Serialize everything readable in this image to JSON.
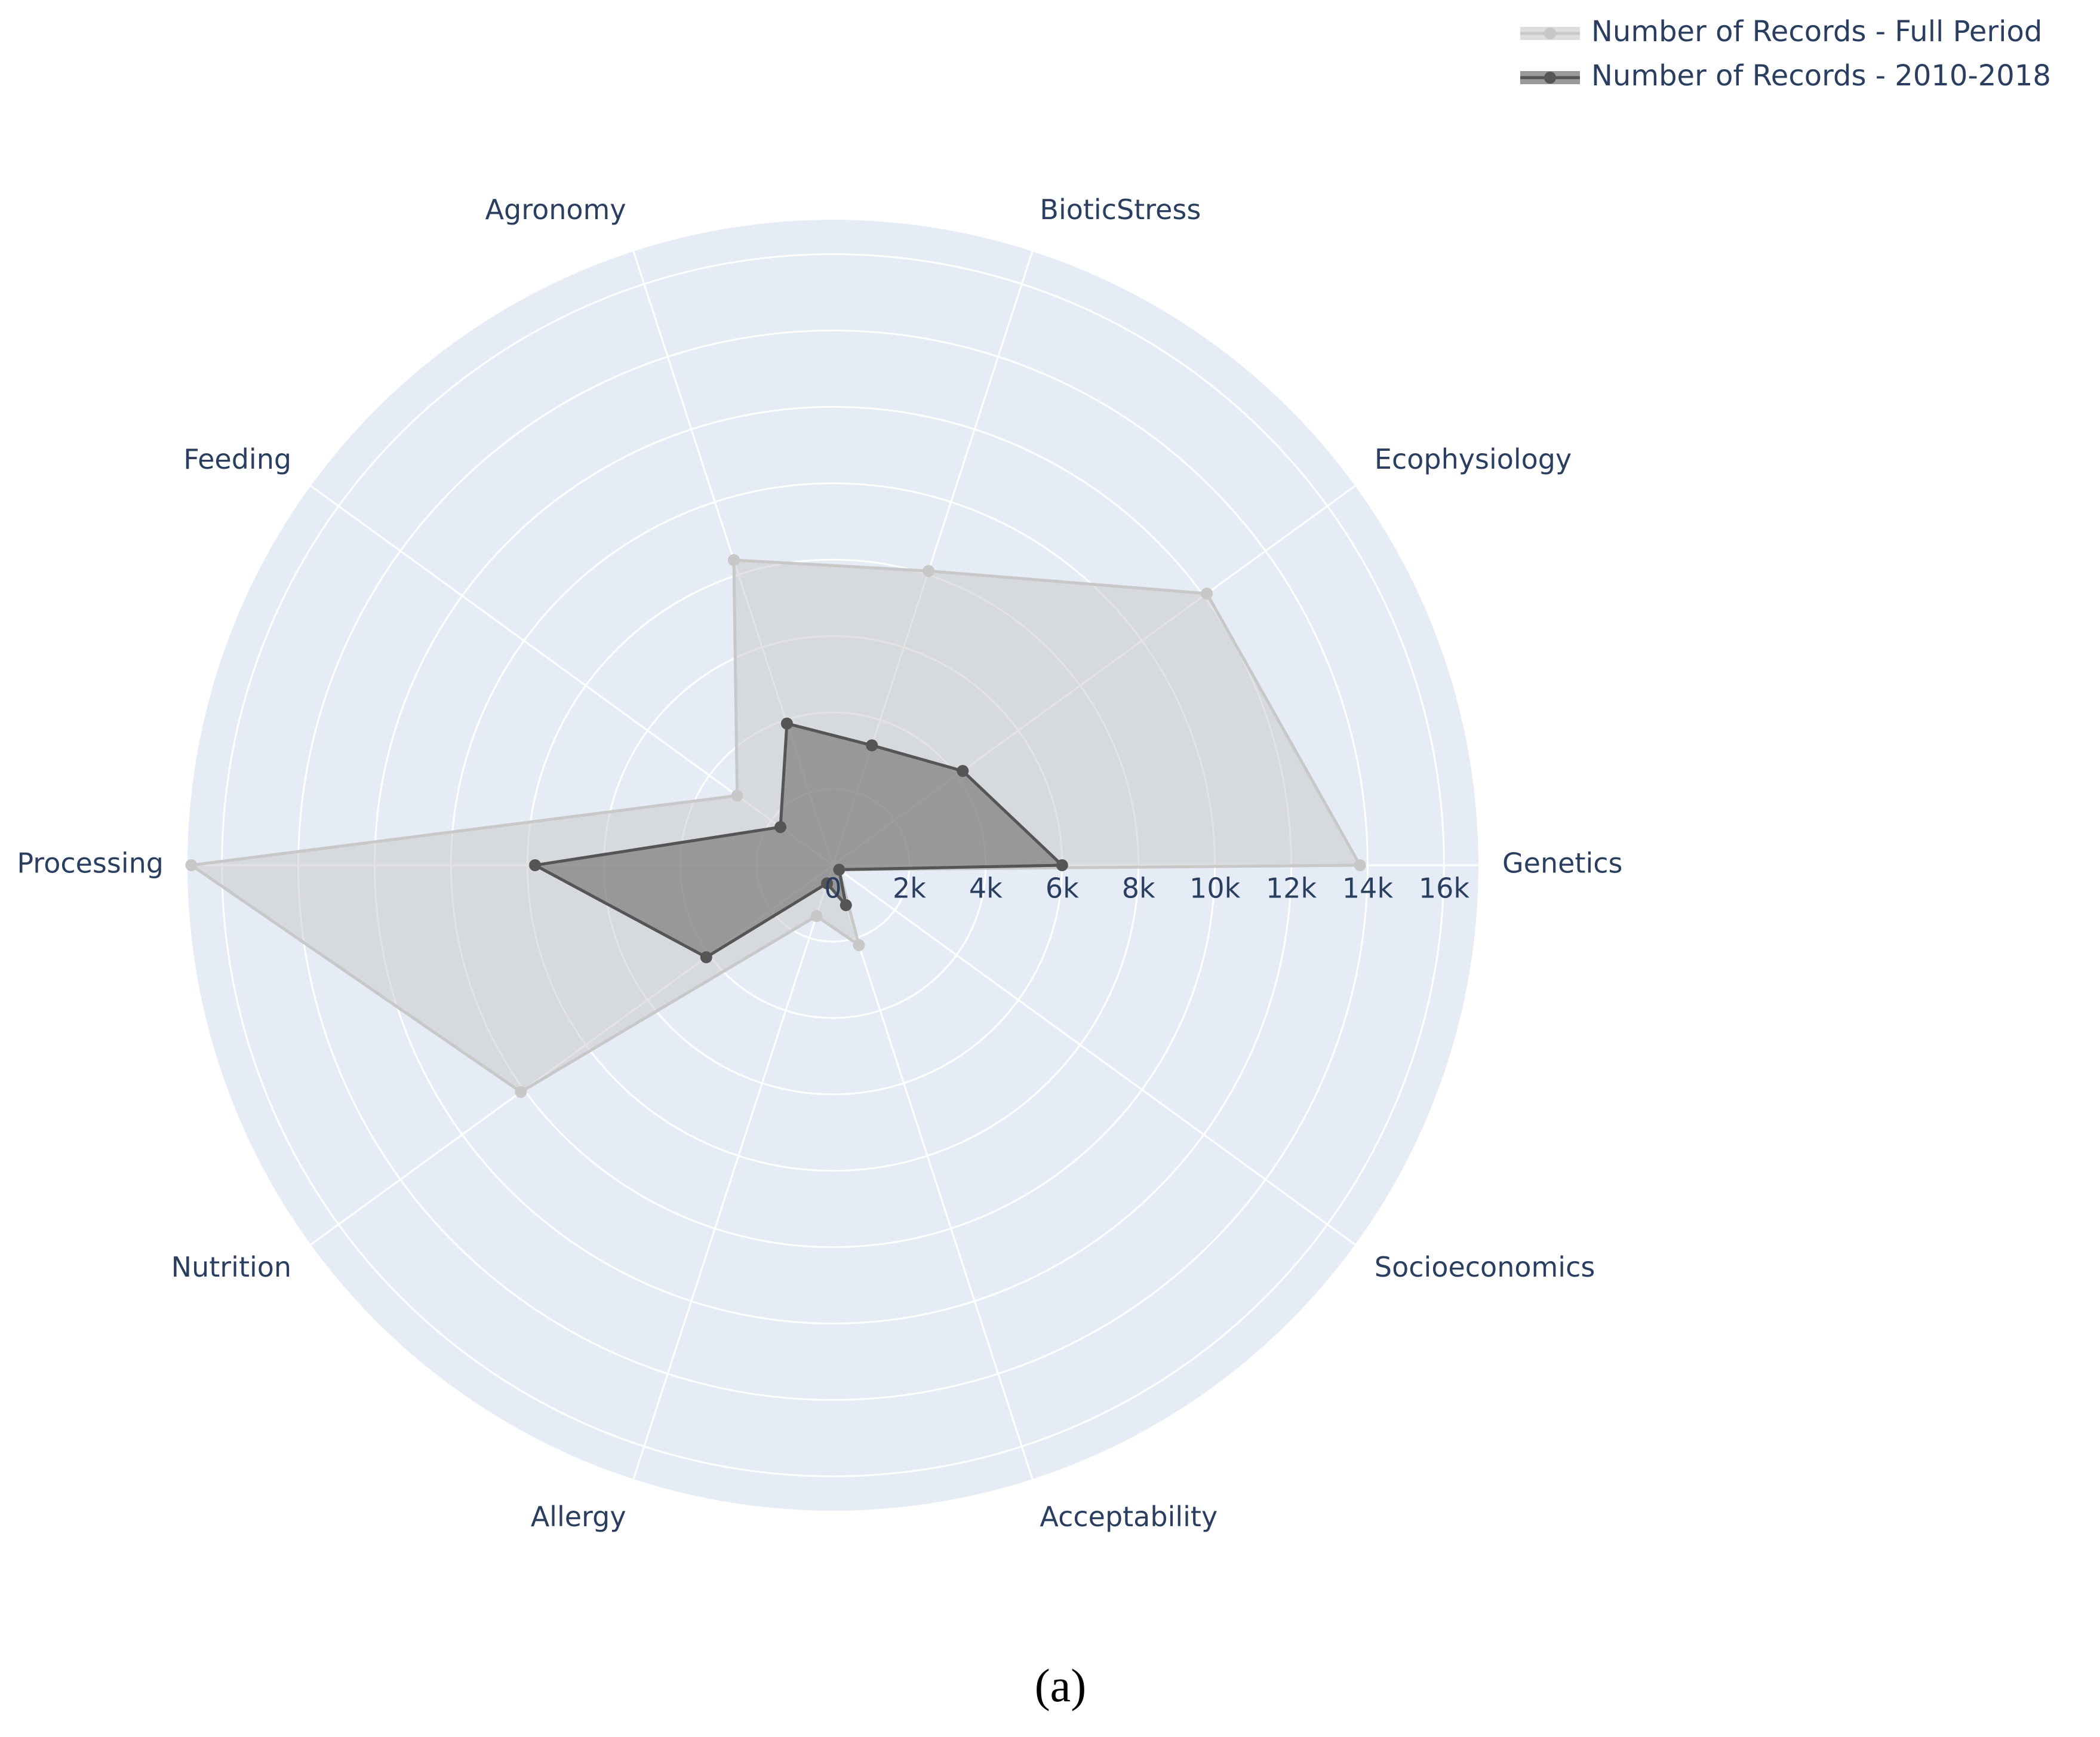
{
  "chart_data": {
    "type": "radar",
    "caption": "(a)",
    "categories": [
      "Genetics",
      "Ecophysiology",
      "BioticStress",
      "Agronomy",
      "Feeding",
      "Processing",
      "Nutrition",
      "Allergy",
      "Acceptability",
      "Socioeconomics"
    ],
    "series": [
      {
        "name": "Number of Records - Full Period",
        "color": "#c8c8c8",
        "values": [
          13800,
          12100,
          8100,
          8400,
          3100,
          16800,
          10100,
          1400,
          2200,
          200
        ]
      },
      {
        "name": "Number of Records - 2010-2018",
        "color": "#555555",
        "values": [
          6000,
          4200,
          3300,
          3900,
          1700,
          7800,
          4100,
          500,
          1100,
          200
        ]
      }
    ],
    "rlim": [
      0,
      16900
    ],
    "rticks": [
      {
        "value": 0,
        "label": "0"
      },
      {
        "value": 2000,
        "label": "2k"
      },
      {
        "value": 4000,
        "label": "4k"
      },
      {
        "value": 6000,
        "label": "6k"
      },
      {
        "value": 8000,
        "label": "8k"
      },
      {
        "value": 10000,
        "label": "10k"
      },
      {
        "value": 12000,
        "label": "12k"
      },
      {
        "value": 14000,
        "label": "14k"
      },
      {
        "value": 16000,
        "label": "16k"
      }
    ],
    "grid": true,
    "legend": "top-right"
  }
}
